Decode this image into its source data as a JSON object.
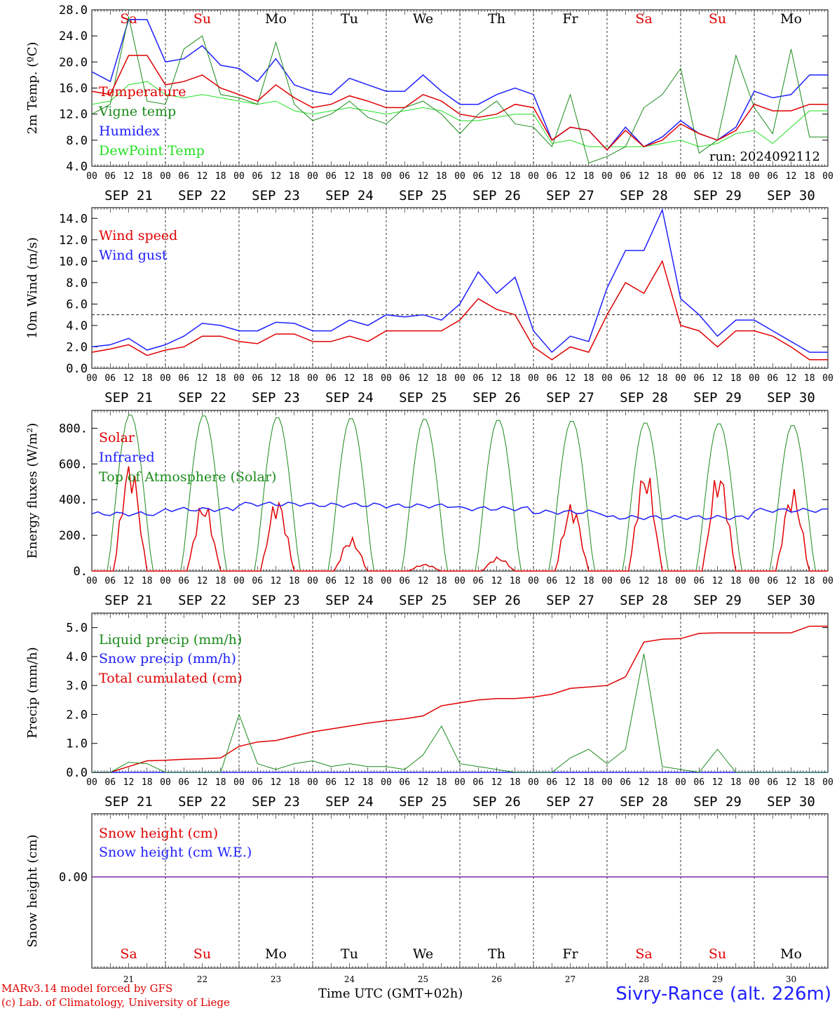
{
  "run_label": "run: 2024092112",
  "colors": {
    "red": "#e00000",
    "green": "#1a8a1a",
    "blue": "#2020ff",
    "lightgreen": "#22e022",
    "purple": "#7a2aa0",
    "black": "#000000"
  },
  "days": [
    {
      "date": "SEP 21",
      "abbr": "Sa",
      "weekend": true,
      "num": "21"
    },
    {
      "date": "SEP 22",
      "abbr": "Su",
      "weekend": true,
      "num": "22"
    },
    {
      "date": "SEP 23",
      "abbr": "Mo",
      "weekend": false,
      "num": "23"
    },
    {
      "date": "SEP 24",
      "abbr": "Tu",
      "weekend": false,
      "num": "24"
    },
    {
      "date": "SEP 25",
      "abbr": "We",
      "weekend": false,
      "num": "25"
    },
    {
      "date": "SEP 26",
      "abbr": "Th",
      "weekend": false,
      "num": "26"
    },
    {
      "date": "SEP 27",
      "abbr": "Fr",
      "weekend": false,
      "num": "27"
    },
    {
      "date": "SEP 28",
      "abbr": "Sa",
      "weekend": true,
      "num": "28"
    },
    {
      "date": "SEP 29",
      "abbr": "Su",
      "weekend": true,
      "num": "29"
    },
    {
      "date": "SEP 30",
      "abbr": "Mo",
      "weekend": false,
      "num": "30"
    }
  ],
  "hour_ticks": [
    "00",
    "06",
    "12",
    "18"
  ],
  "hour_tick_end": "00",
  "footer": {
    "line1": "MARv3.14 model forced by GFS",
    "line2": "(c) Lab. of Climatology, University of Liege",
    "xlabel": "Time UTC (GMT+02h)",
    "station": "Sivry-Rance (alt. 226m)"
  },
  "chart_data": [
    {
      "type": "line",
      "ylabel": "2m Temp. (ºC)",
      "ylim": [
        4,
        28
      ],
      "yticks": [
        "4.0",
        "8.0",
        "12.0",
        "16.0",
        "20.0",
        "24.0",
        "28.0"
      ],
      "x": [
        0,
        6,
        12,
        18,
        24,
        30,
        36,
        42,
        48,
        54,
        60,
        66,
        72,
        78,
        84,
        90,
        96,
        102,
        108,
        114,
        120,
        126,
        132,
        138,
        144,
        150,
        156,
        162,
        168,
        174,
        180,
        186,
        192,
        198,
        204,
        210,
        216,
        222,
        228,
        234
      ],
      "series": [
        {
          "name": "Temperature",
          "color": "red",
          "values": [
            15.5,
            15.0,
            21.0,
            21.0,
            16.5,
            17.0,
            18.0,
            16.0,
            15.0,
            14.0,
            16.5,
            14.5,
            13.0,
            13.5,
            14.8,
            14.0,
            13.0,
            13.0,
            15.0,
            14.0,
            12.0,
            11.5,
            12.0,
            13.5,
            13.0,
            8.0,
            10.0,
            9.5,
            6.5,
            9.5,
            7.0,
            8.0,
            10.5,
            9.0,
            8.0,
            9.5,
            13.5,
            12.5,
            12.5,
            13.5
          ]
        },
        {
          "name": "Vigne temp",
          "color": "green",
          "values": [
            12.0,
            13.5,
            27.0,
            14.0,
            13.5,
            22.0,
            24.0,
            15.0,
            14.5,
            13.5,
            23.0,
            13.5,
            11.0,
            12.0,
            14.0,
            11.5,
            10.5,
            13.0,
            14.0,
            12.0,
            9.0,
            12.0,
            14.0,
            10.5,
            10.0,
            7.0,
            15.0,
            4.5,
            5.5,
            7.0,
            13.0,
            15.0,
            19.0,
            6.0,
            8.0,
            21.0,
            13.0,
            9.0,
            22.0,
            8.5
          ]
        },
        {
          "name": "Humidex",
          "color": "blue",
          "values": [
            18.5,
            17.0,
            26.5,
            26.5,
            20.0,
            20.5,
            22.5,
            19.5,
            19.0,
            17.0,
            20.5,
            16.5,
            15.5,
            15.0,
            17.5,
            16.5,
            15.5,
            15.5,
            18.0,
            15.5,
            13.5,
            13.5,
            15.0,
            16.0,
            15.0,
            8.0,
            10.0,
            9.5,
            6.5,
            10.0,
            7.0,
            8.5,
            11.0,
            9.0,
            8.0,
            10.0,
            15.5,
            14.5,
            15.0,
            18.0
          ]
        },
        {
          "name": "DewPoint Temp",
          "color": "lightgreen",
          "values": [
            13.5,
            14.0,
            16.5,
            17.0,
            15.0,
            14.5,
            15.0,
            14.5,
            14.0,
            13.5,
            14.0,
            12.5,
            12.0,
            12.5,
            13.0,
            12.5,
            12.0,
            12.5,
            13.0,
            12.5,
            11.0,
            11.0,
            11.5,
            12.0,
            12.0,
            7.5,
            8.0,
            7.0,
            7.0,
            7.0,
            7.0,
            7.5,
            8.0,
            7.0,
            7.5,
            9.0,
            9.5,
            7.5,
            10.0,
            12.5
          ]
        }
      ]
    },
    {
      "type": "line",
      "ylabel": "10m Wind (m/s)",
      "ylim": [
        0,
        15
      ],
      "yticks": [
        "0.0",
        "2.0",
        "4.0",
        "6.0",
        "8.0",
        "10.0",
        "12.0",
        "14.0"
      ],
      "reference_line": 5,
      "x": [
        0,
        6,
        12,
        18,
        24,
        30,
        36,
        42,
        48,
        54,
        60,
        66,
        72,
        78,
        84,
        90,
        96,
        102,
        108,
        114,
        120,
        126,
        132,
        138,
        144,
        150,
        156,
        162,
        168,
        174,
        180,
        186,
        192,
        198,
        204,
        210,
        216,
        222,
        228,
        234
      ],
      "series": [
        {
          "name": "Wind speed",
          "color": "red",
          "values": [
            1.5,
            1.8,
            2.2,
            1.2,
            1.7,
            2.0,
            3.0,
            3.0,
            2.5,
            2.3,
            3.2,
            3.2,
            2.5,
            2.5,
            3.0,
            2.5,
            3.5,
            3.5,
            3.5,
            3.5,
            4.5,
            6.5,
            5.5,
            5.0,
            2.0,
            0.8,
            2.0,
            1.5,
            5.0,
            8.0,
            7.0,
            10.0,
            4.0,
            3.5,
            2.0,
            3.5,
            3.5,
            3.0,
            2.0,
            0.8
          ]
        },
        {
          "name": "Wind gust",
          "color": "blue",
          "values": [
            2.0,
            2.2,
            2.8,
            1.7,
            2.2,
            3.0,
            4.2,
            4.0,
            3.5,
            3.5,
            4.3,
            4.2,
            3.5,
            3.5,
            4.5,
            4.0,
            5.0,
            4.8,
            5.0,
            4.5,
            6.0,
            9.0,
            7.0,
            8.5,
            3.5,
            1.5,
            3.0,
            2.5,
            7.5,
            11.0,
            11.0,
            14.8,
            6.5,
            5.0,
            3.0,
            4.5,
            4.5,
            3.5,
            2.5,
            1.5
          ]
        }
      ]
    },
    {
      "type": "line",
      "ylabel": "Energy fluxes (W/m²)",
      "ylim": [
        0,
        900
      ],
      "yticks": [
        "0.",
        "200.",
        "400.",
        "600.",
        "800."
      ],
      "series": [
        {
          "name": "Solar",
          "color": "red",
          "daily_peaks": [
            630,
            400,
            420,
            190,
            40,
            80,
            390,
            590,
            580,
            470
          ]
        },
        {
          "name": "Infrared",
          "color": "blue",
          "values_note": "",
          "baseline": [
            320,
            345,
            375,
            370,
            365,
            350,
            330,
            300,
            300,
            340
          ]
        },
        {
          "name": "Top of Atmosphere (Solar)",
          "color": "green",
          "daily_peaks": [
            880,
            875,
            865,
            860,
            855,
            850,
            845,
            835,
            830,
            820
          ]
        }
      ]
    },
    {
      "type": "line",
      "ylabel": "Precip (mm/h)",
      "ylim": [
        0,
        5.5
      ],
      "yticks": [
        "0.0",
        "1.0",
        "2.0",
        "3.0",
        "4.0",
        "5.0"
      ],
      "x": [
        0,
        6,
        12,
        18,
        24,
        30,
        36,
        42,
        48,
        54,
        60,
        66,
        72,
        78,
        84,
        90,
        96,
        102,
        108,
        114,
        120,
        126,
        132,
        138,
        144,
        150,
        156,
        162,
        168,
        174,
        180,
        186,
        192,
        198,
        204,
        210,
        216,
        222,
        228,
        234
      ],
      "series": [
        {
          "name": "Liquid precip (mm/h)",
          "color": "green",
          "values": [
            0.0,
            0.0,
            0.35,
            0.3,
            0.0,
            0.0,
            0.0,
            0.0,
            2.0,
            0.3,
            0.1,
            0.3,
            0.4,
            0.2,
            0.3,
            0.2,
            0.2,
            0.1,
            0.6,
            1.6,
            0.3,
            0.2,
            0.1,
            0.0,
            0.0,
            0.0,
            0.5,
            0.8,
            0.3,
            0.8,
            4.1,
            0.2,
            0.1,
            0.0,
            0.8,
            0.0,
            0.0,
            0.0,
            0.0,
            0.0
          ]
        },
        {
          "name": "Snow precip (mm/h)",
          "color": "blue",
          "values": [
            0,
            0,
            0,
            0,
            0,
            0,
            0,
            0,
            0,
            0,
            0,
            0,
            0,
            0,
            0,
            0,
            0,
            0,
            0,
            0,
            0,
            0,
            0,
            0,
            0,
            0,
            0,
            0,
            0,
            0,
            0,
            0,
            0,
            0,
            0,
            0,
            0,
            0,
            0,
            0
          ]
        },
        {
          "name": "Total cumulated (cm)",
          "color": "red",
          "values": [
            0.0,
            0.0,
            0.2,
            0.4,
            0.42,
            0.45,
            0.47,
            0.5,
            0.9,
            1.05,
            1.1,
            1.25,
            1.4,
            1.5,
            1.6,
            1.7,
            1.78,
            1.85,
            1.95,
            2.3,
            2.4,
            2.5,
            2.55,
            2.55,
            2.6,
            2.7,
            2.9,
            2.95,
            3.0,
            3.3,
            4.5,
            4.6,
            4.62,
            4.8,
            4.82,
            4.82,
            4.82,
            4.82,
            4.82,
            5.05
          ]
        }
      ]
    },
    {
      "type": "line",
      "ylabel": "Snow height (cm)",
      "yticks": [
        "0.00"
      ],
      "series": [
        {
          "name": "Snow height (cm)",
          "color": "red",
          "values": [
            0,
            0
          ]
        },
        {
          "name": "Snow height (cm W.E.)",
          "color": "blue",
          "values": [
            0,
            0
          ]
        }
      ]
    }
  ]
}
